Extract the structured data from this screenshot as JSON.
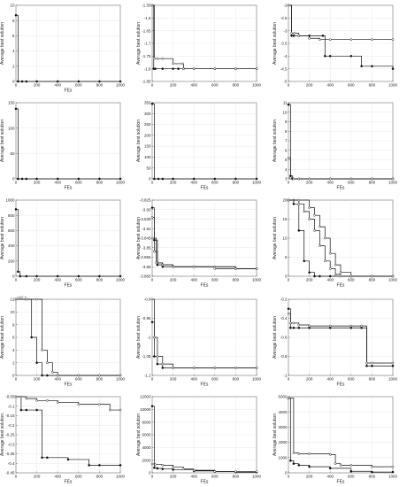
{
  "chart_data": [
    {
      "type": "line",
      "xlabel": "FEs",
      "ylabel": "Average best solution",
      "xticks": [
        0,
        200,
        400,
        600,
        800,
        1000
      ],
      "xlim": [
        0,
        1000
      ],
      "ylim": [
        0,
        10
      ],
      "yticks": [
        "0",
        "2",
        "4",
        "6",
        "8",
        "10"
      ],
      "grid": true,
      "markers": [
        "filled"
      ],
      "series": [
        {
          "x": [
            0,
            20,
            60,
            100,
            200,
            400,
            600,
            800,
            1000
          ],
          "y": [
            8.7,
            0,
            0,
            0,
            0,
            0,
            0,
            0,
            0
          ]
        }
      ]
    },
    {
      "type": "line",
      "xlabel": "",
      "ylabel": "Average best solution",
      "xticks": [
        0,
        200,
        400,
        600,
        800,
        1000
      ],
      "xlim": [
        0,
        1000
      ],
      "ylim": [
        -1.85,
        -1.55
      ],
      "yticks": [
        "-1.85",
        "-1.8",
        "-1.75",
        "-1.7",
        "-1.65",
        "-1.6",
        "-1.55"
      ],
      "grid": true,
      "markers": [
        "filled",
        "open"
      ],
      "series": [
        {
          "x": [
            0,
            15,
            30,
            100,
            200,
            250,
            300,
            400,
            600,
            800,
            1000
          ],
          "y": [
            -1.55,
            -1.8,
            -1.8,
            -1.8,
            -1.8,
            -1.8,
            -1.8,
            -1.8,
            -1.8,
            -1.8,
            -1.8
          ]
        },
        {
          "x": [
            0,
            20,
            50,
            100,
            200,
            290,
            300,
            400,
            600,
            800,
            1000
          ],
          "y": [
            -1.55,
            -1.76,
            -1.76,
            -1.76,
            -1.78,
            -1.78,
            -1.8,
            -1.8,
            -1.8,
            -1.8,
            -1.8
          ]
        }
      ]
    },
    {
      "type": "line",
      "xlabel": "",
      "ylabel": "Average best solution",
      "xticks": [
        0,
        200,
        400,
        600,
        800,
        1000
      ],
      "xlim": [
        0,
        1000
      ],
      "ylim": [
        -5,
        -2
      ],
      "yticks": [
        "-5",
        "-4.5",
        "-4",
        "-3.5",
        "-3",
        "-2.5",
        "-2"
      ],
      "grid": true,
      "markers": [
        "filled",
        "open"
      ],
      "series": [
        {
          "x": [
            0,
            30,
            50,
            100,
            200,
            330,
            350,
            400,
            600,
            700,
            800,
            1000
          ],
          "y": [
            -2,
            -3.2,
            -3.2,
            -3.2,
            -3.2,
            -3.2,
            -4,
            -4,
            -4,
            -4.4,
            -4.4,
            -4.5
          ]
        },
        {
          "x": [
            0,
            30,
            60,
            100,
            200,
            300,
            400,
            600,
            800,
            1000
          ],
          "y": [
            -2,
            -3.1,
            -3.1,
            -3.2,
            -3.3,
            -3.35,
            -3.35,
            -3.35,
            -3.35,
            -3.35
          ]
        }
      ]
    },
    {
      "type": "line",
      "xlabel": "FEs",
      "ylabel": "Average best solution",
      "xticks": [
        0,
        200,
        400,
        600,
        800,
        1000
      ],
      "xlim": [
        0,
        1000
      ],
      "ylim": [
        0,
        150
      ],
      "yticks": [
        "0",
        "50",
        "100",
        "150"
      ],
      "grid": true,
      "markers": [
        "filled"
      ],
      "series": [
        {
          "x": [
            0,
            20,
            60,
            100,
            200,
            400,
            600,
            800,
            1000
          ],
          "y": [
            138,
            0,
            0,
            0,
            0,
            0,
            0,
            0,
            0
          ]
        }
      ]
    },
    {
      "type": "line",
      "xlabel": "FEs",
      "ylabel": "Average best solution",
      "xticks": [
        0,
        200,
        400,
        600,
        800,
        1000
      ],
      "xlim": [
        0,
        1000
      ],
      "ylim": [
        0,
        350
      ],
      "yticks": [
        "0",
        "50",
        "100",
        "150",
        "200",
        "250",
        "300",
        "350"
      ],
      "grid": true,
      "markers": [
        "filled"
      ],
      "series": [
        {
          "x": [
            0,
            20,
            60,
            100,
            200,
            400,
            600,
            800,
            1000
          ],
          "y": [
            345,
            0,
            0,
            0,
            0,
            0,
            0,
            0,
            0
          ]
        }
      ]
    },
    {
      "type": "line",
      "xlabel": "FEs",
      "ylabel": "Average best solution",
      "xticks": [
        0,
        200,
        400,
        600,
        800,
        1000
      ],
      "xlim": [
        0,
        1000
      ],
      "ylim": [
        3,
        11
      ],
      "yticks": [
        "3",
        "4",
        "5",
        "6",
        "7",
        "8",
        "9",
        "10",
        "11"
      ],
      "grid": true,
      "markers": [
        "filled",
        "open"
      ],
      "series": [
        {
          "x": [
            0,
            20,
            40,
            100,
            200,
            400,
            600,
            800,
            1000
          ],
          "y": [
            10.8,
            3.3,
            3,
            3,
            3,
            3,
            3,
            3,
            3
          ]
        },
        {
          "x": [
            0,
            20,
            50,
            100,
            200,
            400,
            600,
            800,
            1000
          ],
          "y": [
            5.2,
            3.1,
            3,
            3,
            3,
            3,
            3,
            3,
            3
          ]
        }
      ]
    },
    {
      "type": "line",
      "xlabel": "FEs",
      "ylabel": "Average best solution",
      "xticks": [
        0,
        200,
        400,
        600,
        800,
        1000
      ],
      "xlim": [
        0,
        1000
      ],
      "ylim": [
        0,
        1000
      ],
      "yticks": [
        "0",
        "200",
        "400",
        "600",
        "800",
        "1000"
      ],
      "grid": true,
      "markers": [
        "filled"
      ],
      "series": [
        {
          "x": [
            0,
            20,
            40,
            100,
            200,
            400,
            600,
            800,
            1000
          ],
          "y": [
            880,
            60,
            0,
            0,
            0,
            0,
            0,
            0,
            0
          ]
        }
      ]
    },
    {
      "type": "line",
      "xlabel": "FEs",
      "ylabel": "Average best solution",
      "xticks": [
        0,
        200,
        400,
        600,
        800,
        1000
      ],
      "xlim": [
        0,
        1000
      ],
      "ylim": [
        -3.865,
        -3.825
      ],
      "yticks": [
        "-3.865",
        "-3.86",
        "-3.855",
        "-3.85",
        "-3.845",
        "-3.84",
        "-3.835",
        "-3.83",
        "-3.825"
      ],
      "grid": true,
      "markers": [
        "filled",
        "open",
        "open"
      ],
      "series": [
        {
          "x": [
            0,
            20,
            50,
            100,
            200,
            400,
            600,
            800,
            1000
          ],
          "y": [
            -3.829,
            -3.846,
            -3.859,
            -3.86,
            -3.86,
            -3.86,
            -3.86,
            -3.861,
            -3.861
          ]
        },
        {
          "x": [
            0,
            20,
            50,
            100,
            200,
            400,
            600,
            800,
            1000
          ],
          "y": [
            -3.834,
            -3.852,
            -3.858,
            -3.859,
            -3.86,
            -3.86,
            -3.861,
            -3.861,
            -3.861
          ]
        },
        {
          "x": [
            0,
            40,
            100,
            200,
            400,
            600,
            800,
            1000
          ],
          "y": [
            -3.845,
            -3.858,
            -3.859,
            -3.86,
            -3.86,
            -3.86,
            -3.861,
            -3.861
          ]
        }
      ]
    },
    {
      "type": "line",
      "xlabel": "FEs",
      "ylabel": "Average best solution",
      "xticks": [
        0,
        200,
        400,
        600,
        800,
        1000
      ],
      "xlim": [
        0,
        1000
      ],
      "ylim": [
        0,
        20
      ],
      "yticks": [
        "0",
        "5",
        "10",
        "15",
        "20"
      ],
      "grid": true,
      "markers": [
        "filled",
        "open",
        "open"
      ],
      "series": [
        {
          "x": [
            0,
            50,
            100,
            150,
            200,
            250,
            300,
            400,
            600,
            800,
            1000
          ],
          "y": [
            20,
            19,
            12,
            4,
            1,
            0,
            0,
            0,
            0,
            0,
            0
          ]
        },
        {
          "x": [
            0,
            50,
            100,
            150,
            200,
            250,
            300,
            350,
            400,
            450,
            500,
            600,
            800,
            1000
          ],
          "y": [
            20,
            20,
            19,
            17,
            15,
            12,
            8,
            4,
            2,
            0.5,
            0,
            0,
            0,
            0
          ]
        },
        {
          "x": [
            0,
            100,
            200,
            250,
            300,
            350,
            400,
            450,
            500,
            600,
            800,
            1000
          ],
          "y": [
            20,
            20,
            18,
            16,
            13,
            10,
            6,
            3,
            1,
            0,
            0,
            0
          ]
        }
      ]
    },
    {
      "type": "line",
      "xlabel": "FEs",
      "ylabel": "Average best solution",
      "exponent": "×10⁻⁴",
      "xticks": [
        0,
        200,
        400,
        600,
        800,
        1000
      ],
      "xlim": [
        0,
        1000
      ],
      "ylim": [
        0,
        12
      ],
      "yticks": [
        "0",
        "2",
        "4",
        "6",
        "8",
        "10",
        "12"
      ],
      "grid": true,
      "markers": [
        "filled",
        "open"
      ],
      "series": [
        {
          "x": [
            0,
            100,
            150,
            200,
            250,
            300,
            400,
            600,
            800,
            1000
          ],
          "y": [
            12,
            12,
            6,
            2,
            0,
            0,
            0,
            0,
            0,
            0
          ]
        },
        {
          "x": [
            0,
            100,
            200,
            250,
            300,
            350,
            400,
            600,
            800,
            1000
          ],
          "y": [
            12,
            12,
            12,
            4,
            2,
            0.5,
            0,
            0,
            0,
            0
          ]
        }
      ]
    },
    {
      "type": "line",
      "xlabel": "FEs",
      "ylabel": "Average best solution",
      "xticks": [
        0,
        200,
        400,
        600,
        800,
        1000
      ],
      "xlim": [
        0,
        1000
      ],
      "ylim": [
        -1.1,
        -0.9
      ],
      "yticks": [
        "-1.1",
        "-1.05",
        "-1",
        "-0.95",
        "-0.9"
      ],
      "grid": true,
      "markers": [
        "filled",
        "open"
      ],
      "series": [
        {
          "x": [
            0,
            20,
            50,
            100,
            200,
            400,
            600,
            800,
            1000
          ],
          "y": [
            -0.96,
            -1.05,
            -1.07,
            -1.08,
            -1.08,
            -1.08,
            -1.08,
            -1.08,
            -1.08
          ]
        },
        {
          "x": [
            0,
            20,
            50,
            100,
            200,
            400,
            600,
            800,
            1000
          ],
          "y": [
            -0.9,
            -1.0,
            -1.05,
            -1.07,
            -1.08,
            -1.08,
            -1.08,
            -1.08,
            -1.08
          ]
        }
      ]
    },
    {
      "type": "line",
      "xlabel": "FEs",
      "ylabel": "Average best solution",
      "xticks": [
        0,
        200,
        400,
        600,
        800,
        1000
      ],
      "xlim": [
        0,
        1000
      ],
      "ylim": [
        -1,
        -0.2
      ],
      "yticks": [
        "-1",
        "-0.8",
        "-0.6",
        "-0.4",
        "-0.2"
      ],
      "grid": true,
      "markers": [
        "filled",
        "open"
      ],
      "series": [
        {
          "x": [
            0,
            20,
            50,
            100,
            200,
            400,
            600,
            700,
            750,
            800,
            1000
          ],
          "y": [
            -0.3,
            -0.5,
            -0.5,
            -0.5,
            -0.5,
            -0.5,
            -0.5,
            -0.5,
            -0.9,
            -0.9,
            -0.9
          ]
        },
        {
          "x": [
            0,
            20,
            50,
            100,
            200,
            400,
            600,
            700,
            750,
            800,
            1000
          ],
          "y": [
            -0.35,
            -0.45,
            -0.45,
            -0.47,
            -0.48,
            -0.48,
            -0.48,
            -0.48,
            -0.87,
            -0.87,
            -0.87
          ]
        }
      ]
    },
    {
      "type": "line",
      "xlabel": "FEs",
      "ylabel": "Average best solution",
      "xticks": [
        0,
        200,
        400,
        600,
        800,
        1000
      ],
      "xlim": [
        0,
        1000
      ],
      "ylim": [
        -0.45,
        -0.05
      ],
      "yticks": [
        "-0.45",
        "-0.4",
        "-0.35",
        "-0.3",
        "-0.25",
        "-0.2",
        "-0.15",
        "-0.1",
        "-0.05"
      ],
      "grid": true,
      "markers": [
        "filled",
        "open"
      ],
      "series": [
        {
          "x": [
            0,
            50,
            100,
            200,
            250,
            300,
            500,
            700,
            800,
            1000
          ],
          "y": [
            -0.05,
            -0.12,
            -0.12,
            -0.12,
            -0.37,
            -0.37,
            -0.38,
            -0.41,
            -0.41,
            -0.41
          ]
        },
        {
          "x": [
            0,
            50,
            100,
            200,
            300,
            400,
            600,
            800,
            900,
            1000
          ],
          "y": [
            -0.05,
            -0.05,
            -0.06,
            -0.07,
            -0.07,
            -0.08,
            -0.09,
            -0.09,
            -0.12,
            -0.12
          ]
        }
      ]
    },
    {
      "type": "line",
      "xlabel": "FEs",
      "ylabel": "Average best solution",
      "xticks": [
        0,
        200,
        400,
        600,
        800,
        1000
      ],
      "xlim": [
        0,
        1000
      ],
      "ylim": [
        0,
        12000
      ],
      "yticks": [
        "0",
        "2000",
        "4000",
        "6000",
        "8000",
        "10000",
        "12000"
      ],
      "grid": true,
      "markers": [
        "filled",
        "open"
      ],
      "series": [
        {
          "x": [
            0,
            20,
            50,
            100,
            200,
            400,
            600,
            800,
            1000
          ],
          "y": [
            10500,
            800,
            700,
            600,
            500,
            300,
            200,
            100,
            100
          ]
        },
        {
          "x": [
            0,
            30,
            100,
            200,
            300,
            400,
            600,
            800,
            1000
          ],
          "y": [
            1400,
            1300,
            1200,
            900,
            600,
            400,
            200,
            200,
            200
          ]
        }
      ]
    },
    {
      "type": "line",
      "xlabel": "FEs",
      "ylabel": "Average best solution",
      "xticks": [
        0,
        200,
        400,
        600,
        800,
        1000
      ],
      "xlim": [
        0,
        1000
      ],
      "ylim": [
        0,
        5000
      ],
      "yticks": [
        "0",
        "1000",
        "2000",
        "3000",
        "4000",
        "5000"
      ],
      "grid": true,
      "markers": [
        "filled",
        "open"
      ],
      "series": [
        {
          "x": [
            0,
            20,
            50,
            100,
            200,
            400,
            600,
            800,
            1000
          ],
          "y": [
            4900,
            800,
            600,
            500,
            400,
            300,
            100,
            50,
            50
          ]
        },
        {
          "x": [
            0,
            50,
            100,
            200,
            400,
            450,
            500,
            600,
            800,
            1000
          ],
          "y": [
            4900,
            1300,
            1250,
            1250,
            1200,
            600,
            500,
            500,
            400,
            400
          ]
        }
      ]
    }
  ]
}
